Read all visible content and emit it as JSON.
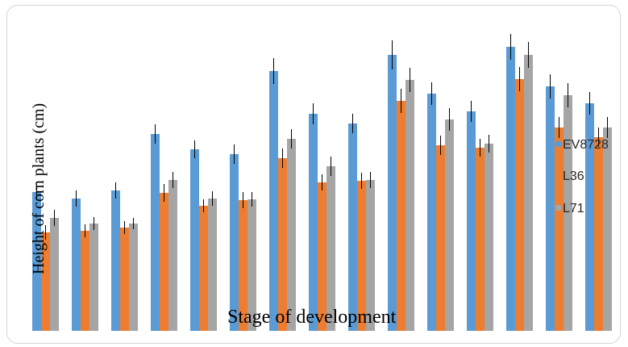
{
  "chart_data": {
    "type": "bar",
    "title": "",
    "xlabel": "Stage of development",
    "ylabel": "Height of corn plants  (cm)",
    "ylim": [
      0,
      400
    ],
    "categories": [
      "",
      "",
      "",
      "",
      "",
      "",
      "",
      "",
      "",
      "",
      "",
      "",
      "",
      "",
      ""
    ],
    "legend_position": "right",
    "grid": false,
    "series": [
      {
        "name": "EV8728",
        "color": "#5b9bd5",
        "values": [
          172,
          164,
          174,
          244,
          225,
          219,
          322,
          269,
          257,
          342,
          294,
          272,
          352,
          303,
          282
        ],
        "errors": [
          10,
          10,
          10,
          12,
          11,
          12,
          16,
          13,
          12,
          18,
          14,
          13,
          16,
          15,
          14
        ]
      },
      {
        "name": "L36",
        "color": "#ed7d31",
        "values": [
          122,
          124,
          128,
          171,
          155,
          162,
          214,
          184,
          186,
          285,
          230,
          227,
          312,
          252,
          240
        ],
        "errors": [
          9,
          8,
          8,
          11,
          8,
          10,
          12,
          10,
          10,
          15,
          12,
          11,
          15,
          13,
          12
        ]
      },
      {
        "name": "L71",
        "color": "#a5a5a5",
        "values": [
          140,
          133,
          133,
          187,
          164,
          163,
          238,
          204,
          187,
          311,
          262,
          232,
          342,
          292,
          252
        ],
        "errors": [
          10,
          8,
          7,
          10,
          9,
          9,
          12,
          12,
          10,
          15,
          14,
          11,
          16,
          15,
          13
        ]
      }
    ]
  }
}
